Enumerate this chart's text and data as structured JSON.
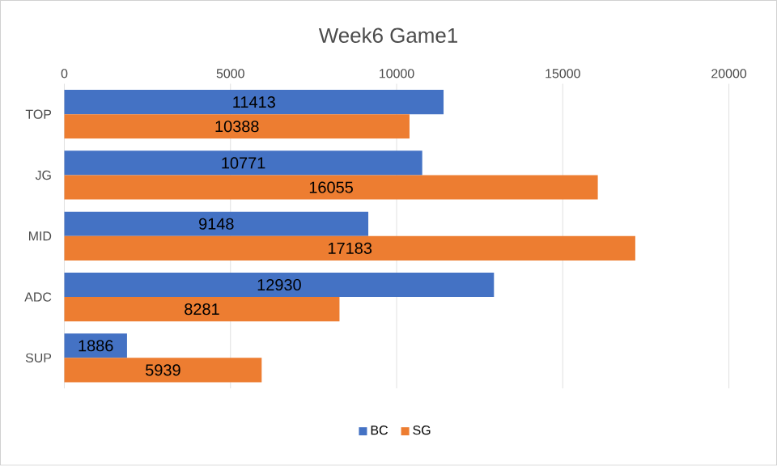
{
  "chart_data": {
    "type": "bar",
    "orientation": "horizontal",
    "title": "Week6 Game1",
    "categories": [
      "TOP",
      "JG",
      "MID",
      "ADC",
      "SUP"
    ],
    "series": [
      {
        "name": "BC",
        "color": "#4472c4",
        "values": [
          11413,
          10771,
          9148,
          12930,
          1886
        ]
      },
      {
        "name": "SG",
        "color": "#ed7d31",
        "values": [
          10388,
          16055,
          17183,
          8281,
          5939
        ]
      }
    ],
    "xlim": [
      0,
      20000
    ],
    "xticks": [
      0,
      5000,
      10000,
      15000,
      20000
    ],
    "grid": "x",
    "legend": "bottom",
    "data_labels": true
  }
}
